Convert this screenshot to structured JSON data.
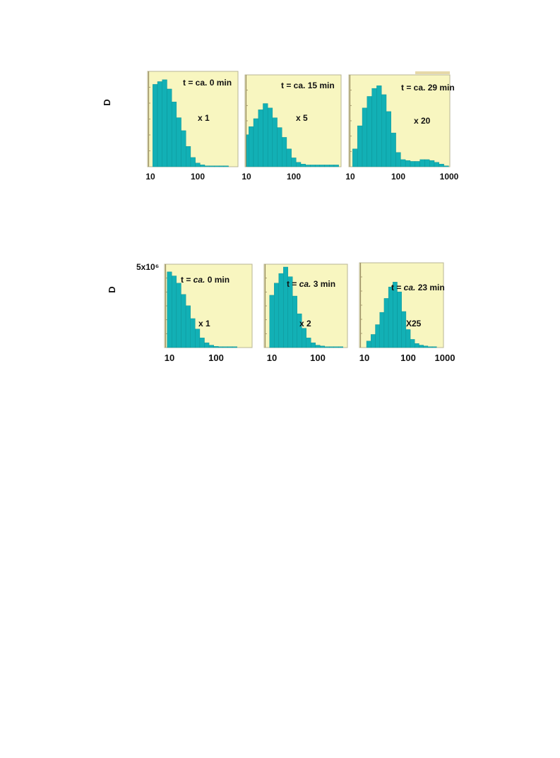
{
  "colors": {
    "panel_bg": "#f8f6c0",
    "bar_fill": "#12b0b5",
    "bar_stroke": "#0a8e93",
    "frame": "#b9b695",
    "axis_text": "#111111"
  },
  "figure": {
    "rows": [
      {
        "ylabel": "D",
        "ymax_label": "",
        "panels": [
          {
            "time_label": "t = ca. 0 min",
            "scale_label": "x 1",
            "x_ticks": [
              "10",
              "100"
            ]
          },
          {
            "time_label": "t = ca. 15 min",
            "scale_label": "x 5",
            "x_ticks": [
              "10",
              "100"
            ]
          },
          {
            "time_label": "t = ca. 29 min",
            "scale_label": "x 20",
            "x_ticks": [
              "10",
              "100",
              "1000"
            ]
          }
        ]
      },
      {
        "ylabel": "D",
        "ymax_label": "5x10⁶",
        "panels": [
          {
            "time_prefix": "t = ",
            "time_ca": "ca.",
            "time_suffix": " 0 min",
            "scale_label": "x 1",
            "x_ticks": [
              "10",
              "100"
            ]
          },
          {
            "time_prefix": "t = ",
            "time_ca": "ca.",
            "time_suffix": " 3 min",
            "scale_label": "x 2",
            "x_ticks": [
              "10",
              "100"
            ]
          },
          {
            "time_prefix": "t = ",
            "time_ca": "ca.",
            "time_suffix": " 23 min",
            "scale_label": "X25",
            "x_ticks": [
              "10",
              "100",
              "1000"
            ]
          }
        ]
      }
    ]
  },
  "chart_data": [
    {
      "type": "bar",
      "panel": "top-1",
      "xscale": "log",
      "xlim": [
        10,
        1000
      ],
      "ylim": [
        0,
        100
      ],
      "ylabel": "D",
      "annotations": [
        "t = ca. 0 min",
        "x 1"
      ],
      "x": [
        8.9,
        11.2,
        14.1,
        17.8,
        22.4,
        28.2,
        35.5,
        44.7,
        56.2,
        70.8,
        89.1,
        112,
        141,
        178,
        224,
        282,
        355,
        447,
        562,
        708
      ],
      "values": [
        0,
        89,
        92,
        94,
        84,
        70,
        53,
        39,
        22,
        10,
        4,
        2,
        1,
        0.5,
        0.3,
        0.2,
        0.1,
        0,
        0,
        0
      ]
    },
    {
      "type": "bar",
      "panel": "top-2",
      "xscale": "log",
      "xlim": [
        10,
        1000
      ],
      "ylim": [
        0,
        100
      ],
      "ylabel": "D",
      "annotations": [
        "t = ca. 15 min",
        "x 5"
      ],
      "x": [
        8.9,
        11.2,
        14.1,
        17.8,
        22.4,
        28.2,
        35.5,
        44.7,
        56.2,
        70.8,
        89.1,
        112,
        141,
        178,
        224,
        282,
        355,
        447,
        562,
        708
      ],
      "values": [
        36,
        45,
        54,
        64,
        71,
        66,
        55,
        44,
        33,
        20,
        10,
        5,
        3,
        2,
        2,
        2,
        2,
        2,
        2,
        2
      ]
    },
    {
      "type": "bar",
      "panel": "top-3",
      "xscale": "log",
      "xlim": [
        10,
        1000
      ],
      "ylim": [
        0,
        100
      ],
      "ylabel": "D",
      "annotations": [
        "t = ca. 29 min",
        "x 20"
      ],
      "x": [
        11.2,
        14.1,
        17.8,
        22.4,
        28.2,
        35.5,
        44.7,
        56.2,
        70.8,
        89.1,
        112,
        141,
        178,
        224,
        282,
        355,
        447,
        562,
        708,
        891
      ],
      "values": [
        20,
        46,
        66,
        79,
        88,
        91,
        81,
        62,
        38,
        16,
        8,
        7,
        6,
        6,
        8,
        8,
        7,
        5,
        3,
        1
      ]
    },
    {
      "type": "bar",
      "panel": "bottom-1",
      "xscale": "log",
      "xlim": [
        10,
        1000
      ],
      "ylim": [
        0,
        100
      ],
      "ylabel": "D",
      "annotations": [
        "5x10⁶",
        "t = ca. 0 min",
        "x 1"
      ],
      "x": [
        8.9,
        11.2,
        14.1,
        17.8,
        22.4,
        28.2,
        35.5,
        44.7,
        56.2,
        70.8,
        89.1,
        112,
        141,
        178,
        224
      ],
      "values": [
        94,
        89,
        80,
        66,
        52,
        36,
        23,
        12,
        6,
        3,
        1.5,
        0.8,
        0.5,
        0.3,
        0.2
      ]
    },
    {
      "type": "bar",
      "panel": "bottom-2",
      "xscale": "log",
      "xlim": [
        10,
        1000
      ],
      "ylim": [
        0,
        100
      ],
      "ylabel": "D",
      "annotations": [
        "t = ca. 3 min",
        "x 2"
      ],
      "x": [
        8.9,
        11.2,
        14.1,
        17.8,
        22.4,
        28.2,
        35.5,
        44.7,
        56.2,
        70.8,
        89.1,
        112,
        141,
        178,
        224,
        282
      ],
      "values": [
        65,
        80,
        92,
        100,
        88,
        64,
        42,
        24,
        12,
        6,
        3,
        2,
        1,
        1,
        0.5,
        0.3
      ]
    },
    {
      "type": "bar",
      "panel": "bottom-3",
      "xscale": "log",
      "xlim": [
        10,
        1000
      ],
      "ylim": [
        0,
        100
      ],
      "ylabel": "D",
      "annotations": [
        "t = ca. 23 min",
        "X25"
      ],
      "x": [
        11.2,
        14.1,
        17.8,
        22.4,
        28.2,
        35.5,
        44.7,
        56.2,
        70.8,
        89.1,
        112,
        141,
        178,
        224,
        282,
        355
      ],
      "values": [
        8,
        16,
        28,
        43,
        60,
        74,
        80,
        68,
        44,
        22,
        10,
        5,
        3,
        2,
        1,
        0.5
      ]
    }
  ]
}
